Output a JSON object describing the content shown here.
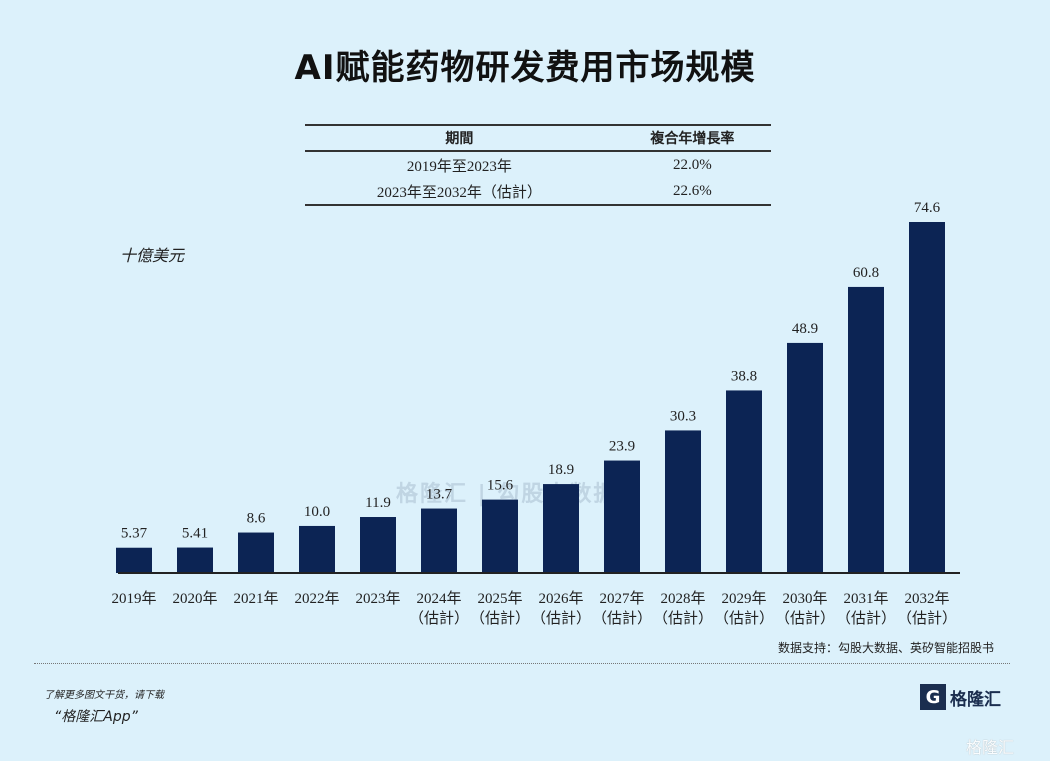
{
  "chart_data": {
    "type": "bar",
    "title": "AI赋能药物研发费用市场规模",
    "ylabel": "十億美元",
    "categories": [
      {
        "year": "2019年",
        "note": ""
      },
      {
        "year": "2020年",
        "note": ""
      },
      {
        "year": "2021年",
        "note": ""
      },
      {
        "year": "2022年",
        "note": ""
      },
      {
        "year": "2023年",
        "note": ""
      },
      {
        "year": "2024年",
        "note": "（估計）"
      },
      {
        "year": "2025年",
        "note": "（估計）"
      },
      {
        "year": "2026年",
        "note": "（估計）"
      },
      {
        "year": "2027年",
        "note": "（估計）"
      },
      {
        "year": "2028年",
        "note": "（估計）"
      },
      {
        "year": "2029年",
        "note": "（估計）"
      },
      {
        "year": "2030年",
        "note": "（估計）"
      },
      {
        "year": "2031年",
        "note": "（估計）"
      },
      {
        "year": "2032年",
        "note": "（估計）"
      }
    ],
    "values": [
      5.37,
      5.41,
      8.6,
      10.0,
      11.9,
      13.7,
      15.6,
      18.9,
      23.9,
      30.3,
      38.8,
      48.9,
      60.8,
      74.6
    ],
    "value_labels": [
      "5.37",
      "5.41",
      "8.6",
      "10.0",
      "11.9",
      "13.7",
      "15.6",
      "18.9",
      "23.9",
      "30.3",
      "38.8",
      "48.9",
      "60.8",
      "74.6"
    ],
    "ylim": [
      0,
      80
    ],
    "grid": false,
    "bar_color": "#0c2454",
    "background": "#dcf1fb"
  },
  "cagr_table": {
    "headers": [
      "期間",
      "複合年增長率"
    ],
    "rows": [
      [
        "2019年至2023年",
        "22.0%"
      ],
      [
        "2023年至2032年（估計）",
        "22.6%"
      ]
    ]
  },
  "source": "数据支持：勾股大数据、英矽智能招股书",
  "footer": {
    "promo_line1": "了解更多图文干货，请下载",
    "promo_line2": "“格隆汇App”",
    "logo_text": "格隆汇",
    "watermark": "格隆汇",
    "center_watermark": "格隆汇 | 勾股大数据"
  }
}
